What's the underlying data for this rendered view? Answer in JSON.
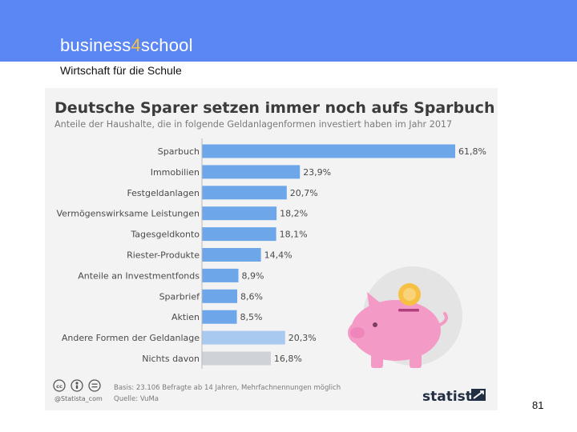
{
  "slide": {
    "brand_prefix": "business",
    "brand_number": "4",
    "brand_suffix": "school",
    "subtitle": "Wirtschaft für die Schule",
    "page_number": "81"
  },
  "colors": {
    "header": "#5b87f5",
    "brand_accent": "#f6c142",
    "bar_primary": "#6ea6ea",
    "bar_other": "#a9c9f1",
    "bar_none": "#cfd3d8",
    "pig": "#f49ac7"
  },
  "chart_data": {
    "type": "bar",
    "orientation": "horizontal",
    "title": "Deutsche Sparer setzen immer noch aufs Sparbuch",
    "subtitle": "Anteile der Haushalte, die in folgende Geldanlagenformen investiert haben im Jahr 2017",
    "categories": [
      "Sparbuch",
      "Immobilien",
      "Festgeldanlagen",
      "Vermögenswirksame Leistungen",
      "Tagesgeldkonto",
      "Riester-Produkte",
      "Anteile an Investmentfonds",
      "Sparbrief",
      "Aktien",
      "Andere Formen der Geldanlage",
      "Nichts davon"
    ],
    "values": [
      61.8,
      23.9,
      20.7,
      18.2,
      18.1,
      14.4,
      8.9,
      8.6,
      8.5,
      20.3,
      16.8
    ],
    "value_labels": [
      "61,8%",
      "23,9%",
      "20,7%",
      "18,2%",
      "18,1%",
      "14,4%",
      "8,9%",
      "8,6%",
      "8,5%",
      "20,3%",
      "16,8%"
    ],
    "unit": "%",
    "xlim": [
      0,
      61.8
    ],
    "grid": false,
    "footer": {
      "basis": "Basis: 23.106 Befragte ab 14 Jahren, Mehrfachnennungen möglich",
      "source": "Quelle: VuMa",
      "credit": "@Statista_com",
      "license_icons": [
        "cc-icon",
        "person-icon",
        "equals-icon"
      ],
      "logo": "statista"
    }
  }
}
